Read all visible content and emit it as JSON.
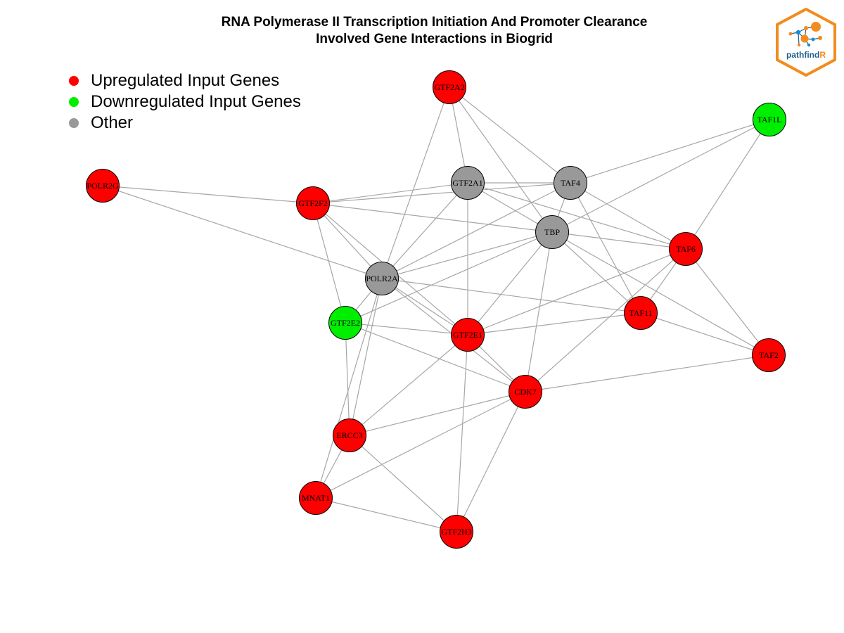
{
  "title": {
    "line1": "RNA Polymerase II Transcription Initiation And Promoter Clearance",
    "line2": "Involved Gene Interactions in Biogrid"
  },
  "legend": {
    "items": [
      {
        "label": "Upregulated Input Genes",
        "color": "#ff0000"
      },
      {
        "label": "Downregulated Input Genes",
        "color": "#00ee00"
      },
      {
        "label": "Other",
        "color": "#999999"
      }
    ]
  },
  "logo": {
    "text_main": "pathfind",
    "text_accent": "R",
    "border_color": "#f28c1e",
    "text_color": "#1f5f8b",
    "accent_color": "#f28c1e"
  },
  "colors": {
    "up": "#ff0000",
    "down": "#00ee00",
    "other": "#999999",
    "edge": "#a6a6a6",
    "node_border": "#000000"
  },
  "nodes": [
    {
      "id": "GTF2A2",
      "label": "GTF2A2",
      "group": "up"
    },
    {
      "id": "TAF1L",
      "label": "TAF1L",
      "group": "down"
    },
    {
      "id": "POLR2G",
      "label": "POLR2G",
      "group": "up"
    },
    {
      "id": "GTF2A1",
      "label": "GTF2A1",
      "group": "other"
    },
    {
      "id": "TAF4",
      "label": "TAF4",
      "group": "other"
    },
    {
      "id": "GTF2F2",
      "label": "GTF2F2",
      "group": "up"
    },
    {
      "id": "TBP",
      "label": "TBP",
      "group": "other"
    },
    {
      "id": "TAF6",
      "label": "TAF6",
      "group": "up"
    },
    {
      "id": "POLR2A",
      "label": "POLR2A",
      "group": "other"
    },
    {
      "id": "TAF11",
      "label": "TAF11",
      "group": "up"
    },
    {
      "id": "GTF2E2",
      "label": "GTF2E2",
      "group": "down"
    },
    {
      "id": "GTF2E1",
      "label": "GTF2E1",
      "group": "up"
    },
    {
      "id": "TAF2",
      "label": "TAF2",
      "group": "up"
    },
    {
      "id": "CDK7",
      "label": "CDK7",
      "group": "up"
    },
    {
      "id": "ERCC3",
      "label": "ERCC3",
      "group": "up"
    },
    {
      "id": "MNAT1",
      "label": "MNAT1",
      "group": "up"
    },
    {
      "id": "GTF2H3",
      "label": "GTF2H3",
      "group": "up"
    }
  ],
  "edges": [
    [
      "GTF2A2",
      "GTF2A1"
    ],
    [
      "GTF2A2",
      "TAF4"
    ],
    [
      "GTF2A2",
      "TBP"
    ],
    [
      "GTF2A2",
      "POLR2A"
    ],
    [
      "TAF1L",
      "TAF4"
    ],
    [
      "TAF1L",
      "TBP"
    ],
    [
      "TAF1L",
      "TAF6"
    ],
    [
      "POLR2G",
      "GTF2F2"
    ],
    [
      "POLR2G",
      "POLR2A"
    ],
    [
      "GTF2A1",
      "TAF4"
    ],
    [
      "GTF2A1",
      "TBP"
    ],
    [
      "GTF2A1",
      "GTF2F2"
    ],
    [
      "GTF2A1",
      "POLR2A"
    ],
    [
      "GTF2A1",
      "GTF2E1"
    ],
    [
      "GTF2A1",
      "TAF6"
    ],
    [
      "TAF4",
      "TBP"
    ],
    [
      "TAF4",
      "TAF6"
    ],
    [
      "TAF4",
      "TAF11"
    ],
    [
      "TAF4",
      "POLR2A"
    ],
    [
      "TAF4",
      "GTF2F2"
    ],
    [
      "GTF2F2",
      "TBP"
    ],
    [
      "GTF2F2",
      "POLR2A"
    ],
    [
      "GTF2F2",
      "GTF2E2"
    ],
    [
      "GTF2F2",
      "GTF2E1"
    ],
    [
      "TBP",
      "TAF6"
    ],
    [
      "TBP",
      "TAF11"
    ],
    [
      "TBP",
      "TAF2"
    ],
    [
      "TBP",
      "POLR2A"
    ],
    [
      "TBP",
      "GTF2E2"
    ],
    [
      "TBP",
      "GTF2E1"
    ],
    [
      "TBP",
      "CDK7"
    ],
    [
      "TAF6",
      "TAF11"
    ],
    [
      "TAF6",
      "TAF2"
    ],
    [
      "TAF6",
      "GTF2E1"
    ],
    [
      "TAF6",
      "CDK7"
    ],
    [
      "POLR2A",
      "TAF11"
    ],
    [
      "POLR2A",
      "GTF2E2"
    ],
    [
      "POLR2A",
      "GTF2E1"
    ],
    [
      "POLR2A",
      "CDK7"
    ],
    [
      "POLR2A",
      "ERCC3"
    ],
    [
      "POLR2A",
      "MNAT1"
    ],
    [
      "TAF11",
      "GTF2E1"
    ],
    [
      "TAF11",
      "TAF2"
    ],
    [
      "GTF2E2",
      "GTF2E1"
    ],
    [
      "GTF2E2",
      "CDK7"
    ],
    [
      "GTF2E2",
      "ERCC3"
    ],
    [
      "GTF2E1",
      "CDK7"
    ],
    [
      "GTF2E1",
      "ERCC3"
    ],
    [
      "GTF2E1",
      "GTF2H3"
    ],
    [
      "TAF2",
      "CDK7"
    ],
    [
      "CDK7",
      "ERCC3"
    ],
    [
      "CDK7",
      "MNAT1"
    ],
    [
      "CDK7",
      "GTF2H3"
    ],
    [
      "ERCC3",
      "MNAT1"
    ],
    [
      "ERCC3",
      "GTF2H3"
    ],
    [
      "MNAT1",
      "GTF2H3"
    ]
  ]
}
